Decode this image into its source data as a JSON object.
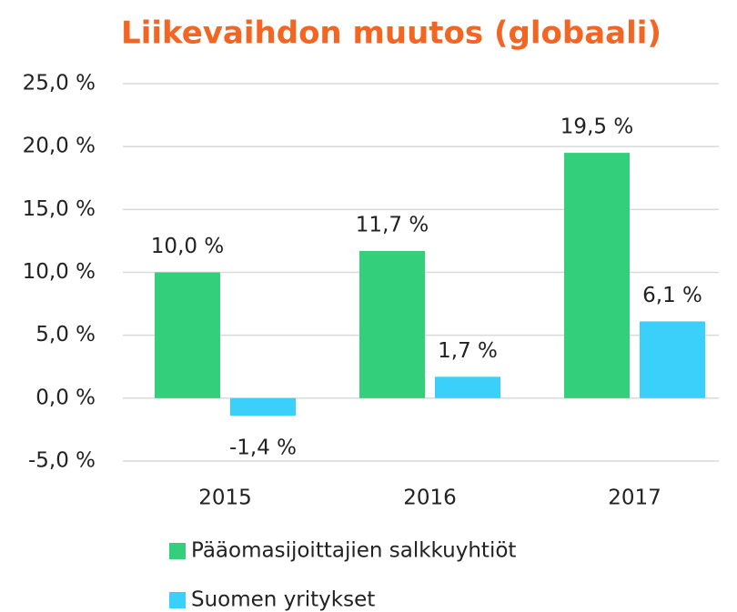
{
  "chart_data": {
    "type": "bar",
    "title": "Liikevaihdon muutos (globaali)",
    "categories": [
      "2015",
      "2016",
      "2017"
    ],
    "series": [
      {
        "name": "Pääomasijoittajien salkkuyhtiöt",
        "color": "#33cf7a",
        "values": [
          10.0,
          11.7,
          19.5
        ],
        "value_labels": [
          "10,0 %",
          "11,7 %",
          "19,5 %"
        ]
      },
      {
        "name": "Suomen yritykset",
        "color": "#3ad0fa",
        "values": [
          -1.4,
          1.7,
          6.1
        ],
        "value_labels": [
          "-1,4 %",
          "1,7 %",
          "6,1 %"
        ]
      }
    ],
    "ylim": [
      -5,
      25
    ],
    "yticks": [
      {
        "value": -5,
        "label": "-5,0 %"
      },
      {
        "value": 0,
        "label": "0,0 %"
      },
      {
        "value": 5,
        "label": "5,0 %"
      },
      {
        "value": 10,
        "label": "10,0 %"
      },
      {
        "value": 15,
        "label": "15,0 %"
      },
      {
        "value": 20,
        "label": "20,0 %"
      },
      {
        "value": 25,
        "label": "25,0 %"
      }
    ],
    "grid": true,
    "legend": "bottom"
  }
}
